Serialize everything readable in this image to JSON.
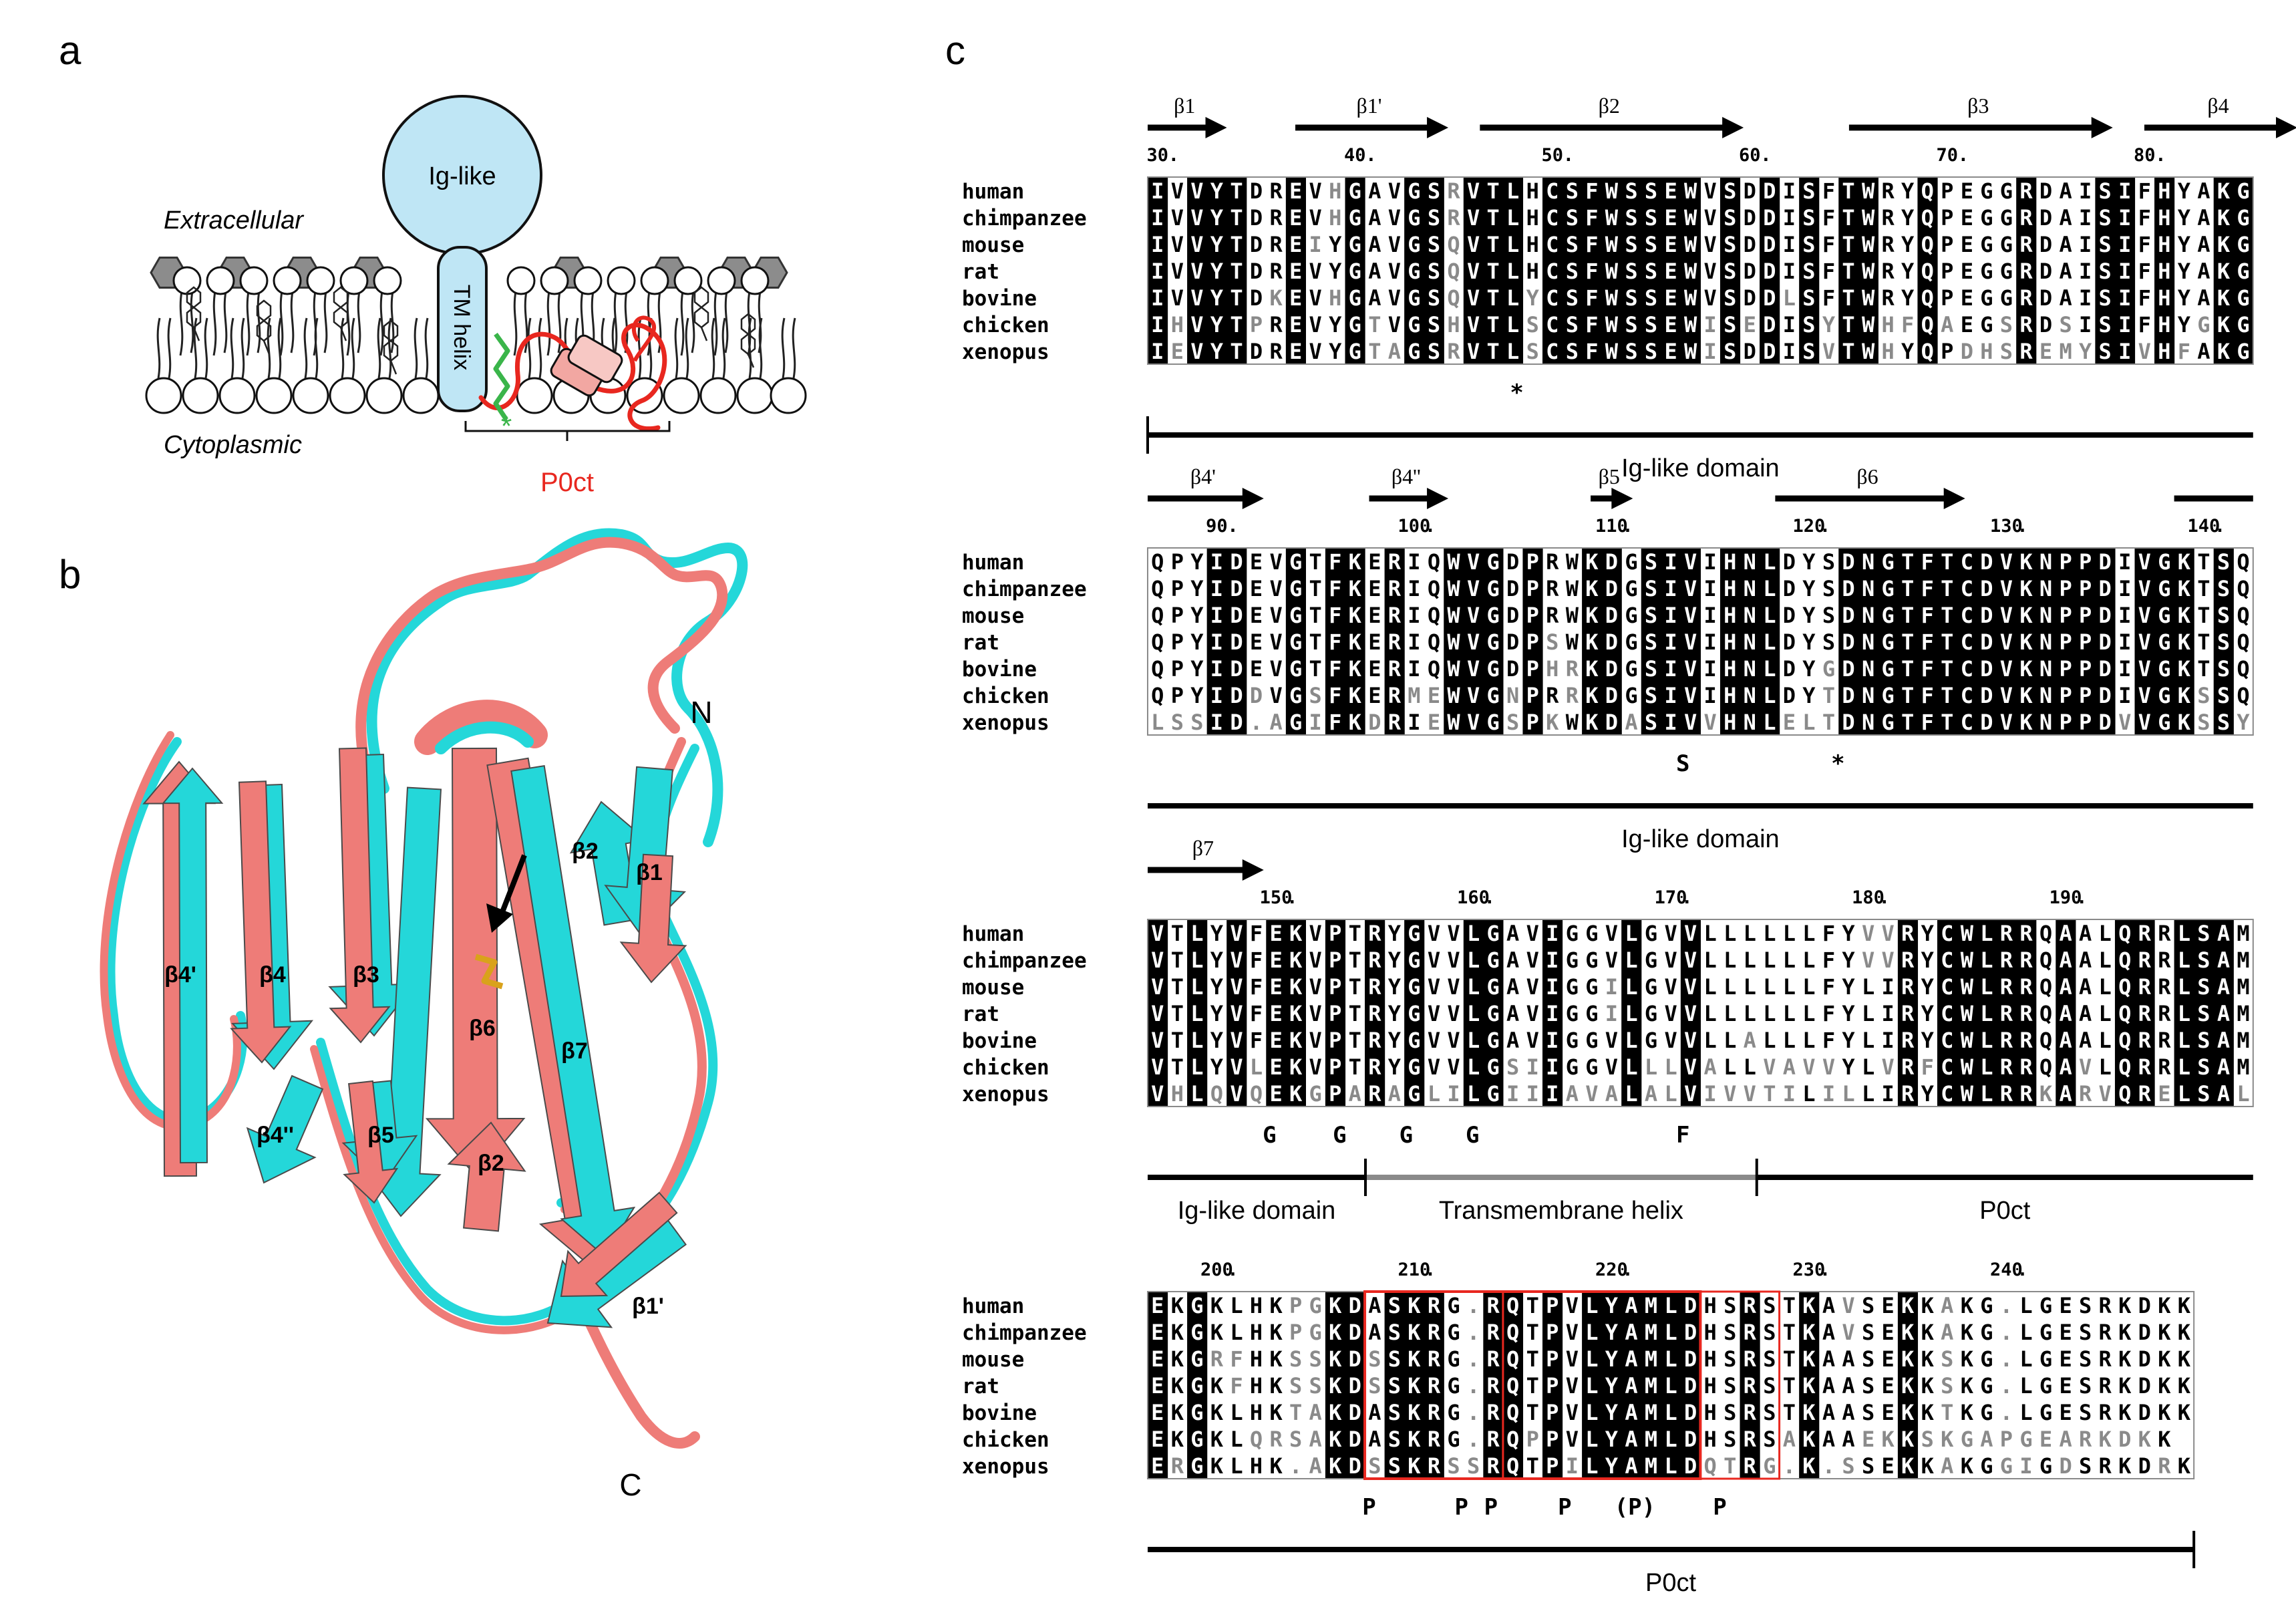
{
  "panel_labels": {
    "a": "a",
    "b": "b",
    "c": "c"
  },
  "panel_a": {
    "ig_label": "Ig-like",
    "tm_label": "TM helix",
    "extracellular": "Extracellular",
    "cytoplasmic": "Cytoplasmic",
    "p0ct_label": "P0ct",
    "star": "*"
  },
  "panel_b": {
    "strand_labels": [
      "β4'",
      "β4",
      "β3",
      "β6",
      "β7",
      "β2",
      "β1",
      "β4''",
      "β5",
      "β2",
      "β1'"
    ],
    "n_terminus": "N",
    "c_terminus": "C"
  },
  "species": [
    "human",
    "chimpanzee",
    "mouse",
    "rat",
    "bovine",
    "chicken",
    "xenopus"
  ],
  "blocks": [
    {
      "strands": [
        "β1",
        "β1'",
        "β2",
        "β3",
        "β4"
      ],
      "ruler": [
        "30",
        "40",
        "50",
        "60",
        "70",
        "80"
      ],
      "rows": [
        "IVVYTDREVHGAVGSRVTLHCSFWSSEWVSDDISFTWRYQPEGGRDAISIFHYAKG",
        "IVVYTDREVHGAVGSRVTLHCSFWSSEWVSDDISFTWRYQPEGGRDAISIFHYAKG",
        "IVVYTDREIYGAVGSQVTLHCSFWSSEWVSDDISFTWRYQPEGGRDAISIFHYAKG",
        "IVVYTDREVYGAVGSQVTLHCSFWSSEWVSDDISFTWRYQPEGGRDAISIFHYAKG",
        "IVVYTDKEVHGAVGSQVTLYCSFWSSEWVSDDLSFTWRYQPEGGRDAISIFHYAKG",
        "IHVYTPREVYGTVGSHVTLSCSFWSSEWISEDISYTWHFQAEGSRDSISIFHYGKG",
        "IEVYTDREVYGTAGSRVTLSCSFWSSEWISDDISVTWHYQPDHSREMYSIVHFAKG"
      ],
      "marks": [
        "*"
      ],
      "domains": [
        "Ig-like domain"
      ]
    },
    {
      "strands": [
        "β4'",
        "β4''",
        "β5",
        "β6"
      ],
      "ruler": [
        "90",
        "100",
        "110",
        "120",
        "130",
        "140"
      ],
      "rows": [
        "QPYIDEVGTFKERIQWVGDPRWKDGSIVIHNLDYSDNGTFTCDVKNPPDIVGKTSQ",
        "QPYIDEVGTFKERIQWVGDPRWKDGSIVIHNLDYSDNGTFTCDVKNPPDIVGKTSQ",
        "QPYIDEVGTFKERIQWVGDPRWKDGSIVIHNLDYSDNGTFTCDVKNPPDIVGKTSQ",
        "QPYIDEVGTFKERIQWVGDPSWKDGSIVIHNLDYSDNGTFTCDVKNPPDIVGKTSQ",
        "QPYIDEVGTFKERIQWVGDPHRKDGSIVIHNLDYGDNGTFTCDVKNPPDIVGKTSQ",
        "QPYIDDVGSFKERMEWVGNPRRKDGSIVIHNLDYTDNGTFTCDVKNPPDIVGKSSQ",
        "LSSID.AGIFKDRIEWVGSPKWKDASIVVHNLELTDNGTFTCDVKNPPDVVGKSSY"
      ],
      "marks": [
        "S",
        "*"
      ],
      "domains": [
        "Ig-like domain"
      ]
    },
    {
      "strands": [
        "β7"
      ],
      "ruler": [
        "150",
        "160",
        "170",
        "180",
        "190"
      ],
      "rows": [
        "VTLYVFEKVPTRYGVVLGAVIGGVLGVVLLLLLLFYVVRYCWLRRQAALQRRLSAM",
        "VTLYVFEKVPTRYGVVLGAVIGGVLGVVLLLLLLFYVVRYCWLRRQAALQRRLSAM",
        "VTLYVFEKVPTRYGVVLGAVIGGILGVVLLLLLLFYLIRYCWLRRQAALQRRLSAM",
        "VTLYVFEKVPTRYGVVLGAVIGGILGVVLLLLLLFYLIRYCWLRRQAALQRRLSAM",
        "VTLYVFEKVPTRYGVVLGAVIGGVLGVVLLALLLFYLIRYCWLRRQAALQRRLSAM",
        "VTLYVLEKVPTRYGVVLGSIIGGVLLLVALLVAVVYLVRFCWLRRQAVLQRRLSAM",
        "VHLQVQEKGPARAGLILGIIIAVALALVIVVTILILLIRYCWLRRKARVQRELSAL"
      ],
      "marks": [
        "G",
        "G",
        "G",
        "G",
        "F"
      ],
      "domains": [
        "Ig-like domain",
        "Transmembrane helix",
        "P0ct"
      ]
    },
    {
      "strands": [],
      "ruler": [
        "200",
        "210",
        "220",
        "230",
        "240"
      ],
      "rows": [
        "EKGKLHKPGKDASKRG.RQTPVLYAMLDHSRSTKAVSEKKAKG.LGESRKDKK",
        "EKGKLHKPGKDASKRG.RQTPVLYAMLDHSRSTKAVSEKKAKG.LGESRKDKK",
        "EKGRFHKSSKDSSKRG.RQTPVLYAMLDHSRSTKAASEKKSKG.LGESRKDKK",
        "EKGKFHKSSKDSSKRG.RQTPVLYAMLDHSRSTKAASEKKSKG.LGESRKDKK",
        "EKGKLHKTAKDASKRG.RQTPVLYAMLDHSRSTKAASEKKTKG.LGESRKDKK",
        "EKGKLQRSAKDASKRG.RQPPVLYAMLDHSRSAKAAEKKSKGAPGEARKDKK",
        "ERGKLHK.AKDSSKRSSRQTPILYAMLDQTRG.K.SSEKKAKGGIGDSRKDRK"
      ],
      "marks": [
        "P",
        "P",
        "P",
        "P",
        "(P)",
        "P"
      ],
      "domains": [
        "P0ct"
      ]
    }
  ],
  "colors": {
    "ig": "#bfe6f5",
    "tm": "#bfe6f5",
    "head": "#8c8c8c",
    "p0ct": "#e8271f",
    "green": "#3ab54a",
    "cyan": "#24d7d9",
    "salmon": "#ee7c78",
    "frame": "#e8271f"
  }
}
